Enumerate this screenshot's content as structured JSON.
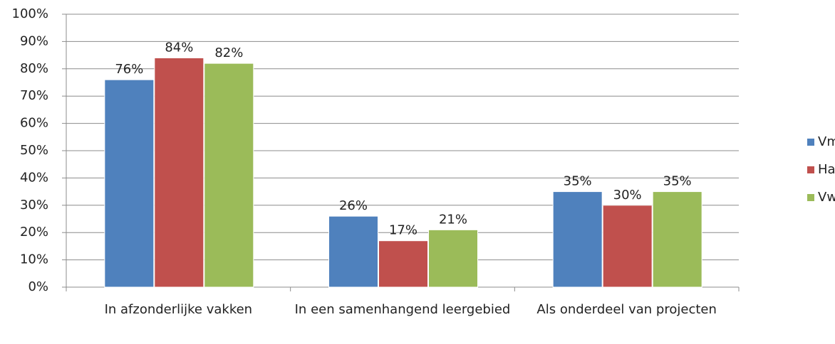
{
  "chart_data": {
    "type": "bar",
    "categories": [
      "In afzonderlijke vakken",
      "In een samenhangend leergebied",
      "Als onderdeel van projecten"
    ],
    "series": [
      {
        "name": "Vmbo",
        "color": "#4f81bd",
        "values": [
          76,
          26,
          35
        ],
        "value_labels": [
          "76%",
          "26%",
          "35%"
        ]
      },
      {
        "name": "Havo",
        "color": "#c0504d",
        "values": [
          84,
          17,
          30
        ],
        "value_labels": [
          "84%",
          "17%",
          "30%"
        ]
      },
      {
        "name": "Vwo",
        "color": "#9bbb59",
        "values": [
          82,
          21,
          35
        ],
        "value_labels": [
          "82%",
          "21%",
          "35%"
        ]
      }
    ],
    "ylim": [
      0,
      100
    ],
    "yticks": [
      {
        "value": 0,
        "label": "0%"
      },
      {
        "value": 10,
        "label": "10%"
      },
      {
        "value": 20,
        "label": "20%"
      },
      {
        "value": 30,
        "label": "30%"
      },
      {
        "value": 40,
        "label": "40%"
      },
      {
        "value": 50,
        "label": "50%"
      },
      {
        "value": 60,
        "label": "60%"
      },
      {
        "value": 70,
        "label": "70%"
      },
      {
        "value": 80,
        "label": "80%"
      },
      {
        "value": 90,
        "label": "90%"
      },
      {
        "value": 100,
        "label": "100%"
      }
    ],
    "grid": true,
    "legend": "right"
  }
}
